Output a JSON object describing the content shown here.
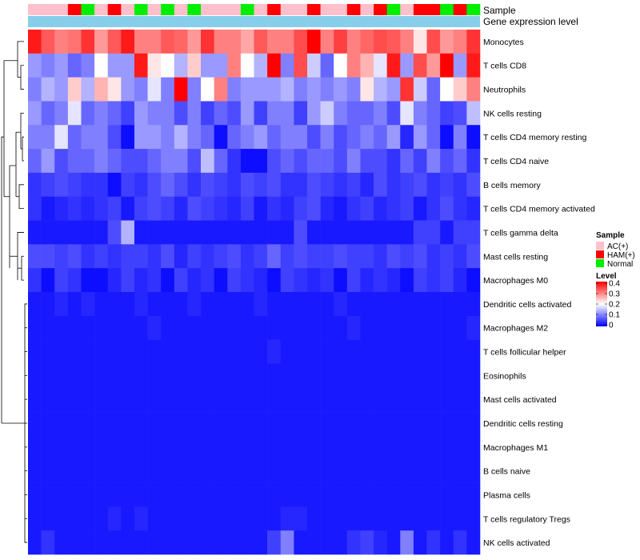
{
  "chart_data": {
    "type": "heatmap",
    "title": "",
    "annotations": {
      "sample_label": "Sample",
      "expression_label": "Gene expression level"
    },
    "sample_groups": [
      "AC(+)",
      "AC(+)",
      "AC(+)",
      "HAM(+)",
      "Normal",
      "AC(+)",
      "HAM(+)",
      "AC(+)",
      "Normal",
      "AC(+)",
      "Normal",
      "AC(+)",
      "Normal",
      "AC(+)",
      "AC(+)",
      "AC(+)",
      "Normal",
      "AC(+)",
      "HAM(+)",
      "AC(+)",
      "AC(+)",
      "HAM(+)",
      "AC(+)",
      "AC(+)",
      "HAM(+)",
      "AC(+)",
      "HAM(+)",
      "Normal",
      "AC(+)",
      "HAM(+)",
      "HAM(+)",
      "Normal",
      "HAM(+)",
      "Normal"
    ],
    "rows": [
      {
        "label": "Monocytes",
        "values": [
          0.38,
          0.33,
          0.3,
          0.31,
          0.36,
          0.28,
          0.33,
          0.38,
          0.3,
          0.3,
          0.33,
          0.32,
          0.28,
          0.36,
          0.3,
          0.3,
          0.27,
          0.33,
          0.3,
          0.3,
          0.34,
          0.4,
          0.3,
          0.35,
          0.3,
          0.32,
          0.34,
          0.33,
          0.3,
          0.22,
          0.34,
          0.28,
          0.3,
          0.36
        ]
      },
      {
        "label": "T cells CD8",
        "values": [
          0.12,
          0.1,
          0.12,
          0.08,
          0.1,
          0.2,
          0.12,
          0.12,
          0.38,
          0.22,
          0.2,
          0.14,
          0.24,
          0.12,
          0.12,
          0.3,
          0.2,
          0.14,
          0.4,
          0.1,
          0.34,
          0.16,
          0.08,
          0.2,
          0.3,
          0.26,
          0.18,
          0.38,
          0.12,
          0.34,
          0.28,
          0.4,
          0.12,
          0.38
        ]
      },
      {
        "label": "Neutrophils",
        "values": [
          0.1,
          0.14,
          0.12,
          0.24,
          0.14,
          0.26,
          0.22,
          0.12,
          0.1,
          0.18,
          0.1,
          0.4,
          0.1,
          0.2,
          0.3,
          0.1,
          0.12,
          0.12,
          0.12,
          0.14,
          0.1,
          0.12,
          0.1,
          0.12,
          0.1,
          0.22,
          0.14,
          0.12,
          0.36,
          0.16,
          0.08,
          0.2,
          0.24,
          0.3
        ]
      },
      {
        "label": "NK cells resting",
        "values": [
          0.12,
          0.08,
          0.1,
          0.18,
          0.08,
          0.1,
          0.08,
          0.05,
          0.12,
          0.1,
          0.1,
          0.06,
          0.1,
          0.05,
          0.08,
          0.06,
          0.12,
          0.05,
          0.1,
          0.1,
          0.05,
          0.12,
          0.16,
          0.1,
          0.08,
          0.08,
          0.1,
          0.06,
          0.18,
          0.1,
          0.08,
          0.05,
          0.06,
          0.15
        ]
      },
      {
        "label": "T cells CD4 memory resting",
        "values": [
          0.1,
          0.1,
          0.18,
          0.08,
          0.1,
          0.1,
          0.06,
          0.01,
          0.12,
          0.12,
          0.1,
          0.14,
          0.1,
          0.08,
          0.01,
          0.08,
          0.1,
          0.12,
          0.08,
          0.1,
          0.1,
          0.06,
          0.1,
          0.06,
          0.08,
          0.1,
          0.08,
          0.12,
          0.03,
          0.12,
          0.08,
          0.01,
          0.1,
          0.01
        ]
      },
      {
        "label": "T cells CD4 naive",
        "values": [
          0.08,
          0.12,
          0.06,
          0.08,
          0.08,
          0.1,
          0.08,
          0.06,
          0.06,
          0.08,
          0.1,
          0.1,
          0.06,
          0.15,
          0.08,
          0.04,
          0.01,
          0.01,
          0.06,
          0.08,
          0.06,
          0.08,
          0.08,
          0.06,
          0.1,
          0.06,
          0.06,
          0.04,
          0.08,
          0.05,
          0.1,
          0.06,
          0.08,
          0.04
        ]
      },
      {
        "label": "B cells memory",
        "values": [
          0.04,
          0.05,
          0.06,
          0.05,
          0.04,
          0.04,
          0.01,
          0.05,
          0.04,
          0.06,
          0.08,
          0.06,
          0.04,
          0.06,
          0.05,
          0.04,
          0.06,
          0.05,
          0.06,
          0.04,
          0.04,
          0.06,
          0.05,
          0.04,
          0.05,
          0.03,
          0.06,
          0.04,
          0.05,
          0.06,
          0.04,
          0.05,
          0.04,
          0.06
        ]
      },
      {
        "label": "T cells CD4 memory activated",
        "values": [
          0.04,
          0.02,
          0.03,
          0.04,
          0.03,
          0.04,
          0.05,
          0.02,
          0.05,
          0.06,
          0.05,
          0.03,
          0.06,
          0.05,
          0.04,
          0.03,
          0.05,
          0.02,
          0.04,
          0.03,
          0.05,
          0.06,
          0.03,
          0.02,
          0.04,
          0.05,
          0.03,
          0.04,
          0.05,
          0.02,
          0.04,
          0.06,
          0.04,
          0.03
        ]
      },
      {
        "label": "T cells gamma delta",
        "values": [
          0.02,
          0.02,
          0.02,
          0.02,
          0.02,
          0.02,
          0.06,
          0.14,
          0.02,
          0.02,
          0.02,
          0.02,
          0.02,
          0.02,
          0.02,
          0.02,
          0.02,
          0.02,
          0.02,
          0.02,
          0.06,
          0.02,
          0.02,
          0.02,
          0.02,
          0.02,
          0.02,
          0.02,
          0.02,
          0.05,
          0.05,
          0.02,
          0.05,
          0.05
        ]
      },
      {
        "label": "Mast cells resting",
        "values": [
          0.06,
          0.06,
          0.05,
          0.06,
          0.04,
          0.05,
          0.04,
          0.05,
          0.05,
          0.04,
          0.06,
          0.03,
          0.05,
          0.04,
          0.05,
          0.06,
          0.04,
          0.05,
          0.08,
          0.05,
          0.06,
          0.05,
          0.05,
          0.06,
          0.05,
          0.05,
          0.04,
          0.06,
          0.05,
          0.06,
          0.04,
          0.05,
          0.04,
          0.06
        ]
      },
      {
        "label": "Macrophages M0",
        "values": [
          0.04,
          0.01,
          0.05,
          0.04,
          0.01,
          0.01,
          0.03,
          0.05,
          0.03,
          0.04,
          0.01,
          0.05,
          0.03,
          0.04,
          0.01,
          0.05,
          0.04,
          0.03,
          0.01,
          0.05,
          0.04,
          0.03,
          0.04,
          0.01,
          0.05,
          0.03,
          0.04,
          0.03,
          0.01,
          0.05,
          0.04,
          0.05,
          0.03,
          0.01
        ]
      },
      {
        "label": "Dendritic cells activated",
        "values": [
          0.02,
          0.02,
          0.03,
          0.02,
          0.03,
          0.02,
          0.02,
          0.02,
          0.03,
          0.02,
          0.02,
          0.02,
          0.03,
          0.02,
          0.02,
          0.02,
          0.02,
          0.03,
          0.02,
          0.02,
          0.02,
          0.02,
          0.02,
          0.03,
          0.02,
          0.02,
          0.02,
          0.02,
          0.02,
          0.02,
          0.02,
          0.02,
          0.02,
          0.02
        ]
      },
      {
        "label": "Macrophages M2",
        "values": [
          0.02,
          0.02,
          0.02,
          0.02,
          0.02,
          0.02,
          0.02,
          0.02,
          0.02,
          0.03,
          0.02,
          0.02,
          0.02,
          0.02,
          0.02,
          0.02,
          0.02,
          0.02,
          0.02,
          0.02,
          0.02,
          0.02,
          0.02,
          0.02,
          0.03,
          0.02,
          0.02,
          0.02,
          0.02,
          0.02,
          0.02,
          0.02,
          0.02,
          0.03
        ]
      },
      {
        "label": "T cells follicular helper",
        "values": [
          0.02,
          0.02,
          0.02,
          0.02,
          0.02,
          0.02,
          0.02,
          0.02,
          0.02,
          0.02,
          0.02,
          0.02,
          0.02,
          0.02,
          0.02,
          0.02,
          0.02,
          0.02,
          0.03,
          0.02,
          0.02,
          0.02,
          0.02,
          0.02,
          0.02,
          0.02,
          0.02,
          0.02,
          0.02,
          0.02,
          0.02,
          0.02,
          0.02,
          0.02
        ]
      },
      {
        "label": "Eosinophils",
        "values": [
          0.02,
          0.02,
          0.02,
          0.02,
          0.02,
          0.02,
          0.02,
          0.02,
          0.02,
          0.02,
          0.02,
          0.02,
          0.02,
          0.02,
          0.02,
          0.02,
          0.02,
          0.02,
          0.02,
          0.02,
          0.02,
          0.02,
          0.02,
          0.02,
          0.02,
          0.02,
          0.02,
          0.02,
          0.02,
          0.02,
          0.02,
          0.02,
          0.02,
          0.02
        ]
      },
      {
        "label": "Mast cells activated",
        "values": [
          0.02,
          0.02,
          0.02,
          0.02,
          0.02,
          0.02,
          0.02,
          0.02,
          0.02,
          0.02,
          0.02,
          0.02,
          0.02,
          0.02,
          0.02,
          0.02,
          0.02,
          0.02,
          0.02,
          0.02,
          0.02,
          0.02,
          0.02,
          0.02,
          0.02,
          0.02,
          0.02,
          0.02,
          0.02,
          0.02,
          0.02,
          0.02,
          0.02,
          0.02
        ]
      },
      {
        "label": "Dendritic cells resting",
        "values": [
          0.02,
          0.02,
          0.02,
          0.02,
          0.02,
          0.02,
          0.02,
          0.02,
          0.02,
          0.02,
          0.02,
          0.02,
          0.02,
          0.02,
          0.02,
          0.02,
          0.02,
          0.02,
          0.02,
          0.02,
          0.02,
          0.02,
          0.02,
          0.02,
          0.02,
          0.02,
          0.02,
          0.02,
          0.02,
          0.02,
          0.02,
          0.02,
          0.02,
          0.02
        ]
      },
      {
        "label": "Macrophages M1",
        "values": [
          0.02,
          0.02,
          0.02,
          0.02,
          0.02,
          0.02,
          0.02,
          0.02,
          0.02,
          0.02,
          0.02,
          0.02,
          0.02,
          0.02,
          0.02,
          0.02,
          0.02,
          0.02,
          0.02,
          0.02,
          0.02,
          0.02,
          0.02,
          0.02,
          0.02,
          0.02,
          0.02,
          0.02,
          0.02,
          0.02,
          0.02,
          0.02,
          0.02,
          0.02
        ]
      },
      {
        "label": "B cells naive",
        "values": [
          0.02,
          0.02,
          0.02,
          0.02,
          0.02,
          0.02,
          0.02,
          0.02,
          0.02,
          0.02,
          0.02,
          0.02,
          0.02,
          0.02,
          0.02,
          0.02,
          0.02,
          0.02,
          0.02,
          0.02,
          0.02,
          0.02,
          0.02,
          0.02,
          0.02,
          0.02,
          0.02,
          0.02,
          0.02,
          0.02,
          0.02,
          0.02,
          0.02,
          0.02
        ]
      },
      {
        "label": "Plasma cells",
        "values": [
          0.02,
          0.02,
          0.02,
          0.02,
          0.02,
          0.02,
          0.02,
          0.02,
          0.02,
          0.02,
          0.02,
          0.02,
          0.02,
          0.02,
          0.02,
          0.02,
          0.02,
          0.02,
          0.02,
          0.02,
          0.02,
          0.02,
          0.02,
          0.02,
          0.02,
          0.02,
          0.02,
          0.02,
          0.02,
          0.02,
          0.02,
          0.02,
          0.02,
          0.02
        ]
      },
      {
        "label": "T cells regulatory  Tregs",
        "values": [
          0.02,
          0.02,
          0.02,
          0.02,
          0.02,
          0.02,
          0.03,
          0.02,
          0.03,
          0.02,
          0.02,
          0.02,
          0.02,
          0.02,
          0.02,
          0.02,
          0.02,
          0.02,
          0.02,
          0.03,
          0.03,
          0.02,
          0.02,
          0.02,
          0.02,
          0.02,
          0.02,
          0.02,
          0.02,
          0.02,
          0.02,
          0.02,
          0.02,
          0.02
        ]
      },
      {
        "label": "NK cells activated",
        "values": [
          0.02,
          0.04,
          0.02,
          0.02,
          0.02,
          0.02,
          0.02,
          0.02,
          0.02,
          0.02,
          0.02,
          0.02,
          0.02,
          0.02,
          0.02,
          0.02,
          0.02,
          0.02,
          0.05,
          0.1,
          0.02,
          0.02,
          0.02,
          0.02,
          0.04,
          0.05,
          0.03,
          0.02,
          0.1,
          0.02,
          0.04,
          0.02,
          0.04,
          0.02
        ]
      }
    ],
    "legend_sample": {
      "title": "Sample",
      "items": [
        {
          "label": "AC(+)",
          "color": "#ffc0cb"
        },
        {
          "label": "HAM(+)",
          "color": "#ff0000"
        },
        {
          "label": "Normal",
          "color": "#00ee00"
        }
      ]
    },
    "legend_level": {
      "title": "Level",
      "range": [
        0,
        0.4
      ],
      "ticks": [
        "0.4",
        "0.3",
        "0.2",
        "0.1",
        "0"
      ],
      "colors": {
        "low": "#0000ff",
        "mid": "#ffffff",
        "high": "#ff0000"
      }
    },
    "expression_bar_color": "#87ceeb",
    "group_colors": {
      "AC(+)": "#ffc0cb",
      "HAM(+)": "#ff0000",
      "Normal": "#00ee00"
    }
  }
}
